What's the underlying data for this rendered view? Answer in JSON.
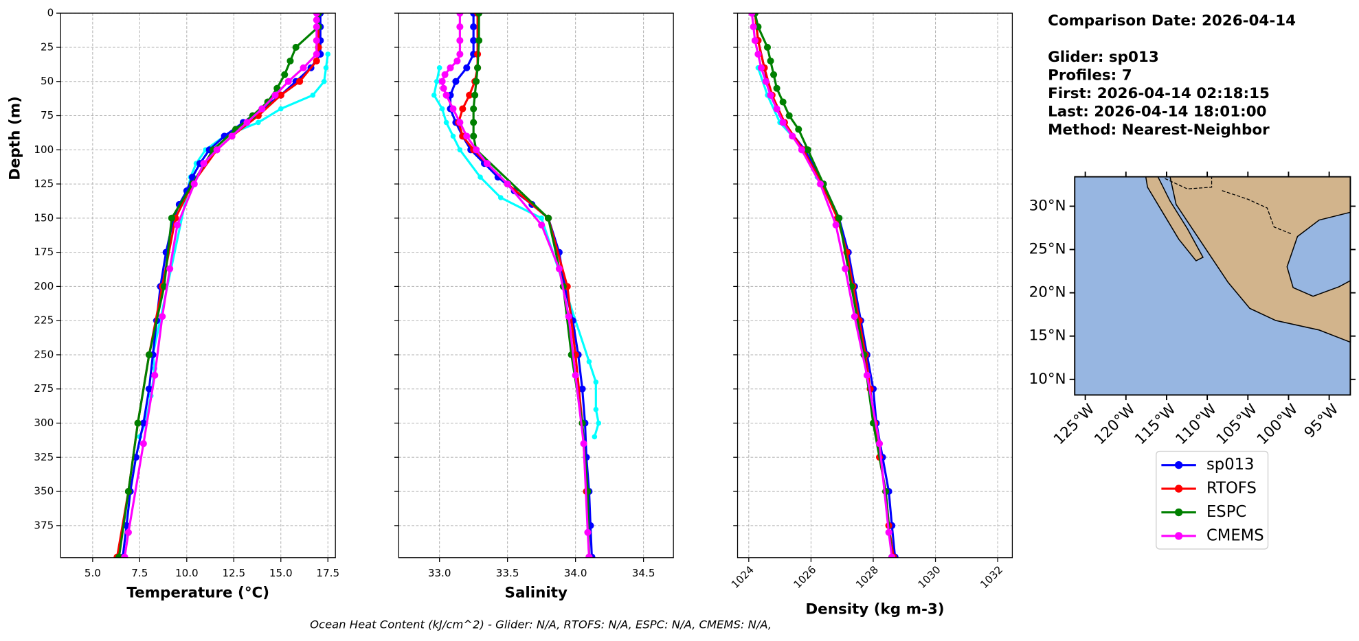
{
  "info": {
    "title": "Comparison Date: 2026-04-14",
    "lines": [
      "Glider: sp013",
      "Profiles: 7",
      "First: 2026-04-14 02:18:15",
      "Last: 2026-04-14 18:01:00",
      "Method: Nearest-Neighbor"
    ]
  },
  "footer": "Ocean Heat Content (kJ/cm^2) - Glider: N/A,  RTOFS: N/A,  ESPC: N/A,  CMEMS: N/A,",
  "chart_data": [
    {
      "type": "line",
      "xlabel": "Temperature (°C)",
      "ylabel": "Depth (m)",
      "grid": true,
      "invert_y": true,
      "xlim": [
        3.3,
        17.9
      ],
      "xticks": [
        {
          "value": 5,
          "label": "5.0"
        },
        7.5,
        {
          "value": 10,
          "label": "10.0"
        },
        12.5,
        {
          "value": 15,
          "label": "15.0"
        },
        17.5
      ],
      "ylim": [
        0,
        398.5
      ],
      "yticks": [
        0,
        25,
        50,
        75,
        100,
        125,
        150,
        175,
        200,
        225,
        250,
        275,
        300,
        325,
        350,
        375
      ],
      "series": [
        {
          "color": "#00ffff",
          "depth": [
            30,
            40,
            50,
            60,
            70,
            80,
            90,
            100,
            110,
            120,
            250,
            260,
            280,
            300,
            310
          ],
          "values": [
            17.5,
            17.4,
            17.3,
            16.7,
            15.0,
            13.8,
            12.0,
            11.0,
            10.5,
            10.2,
            8.2,
            8.3,
            8.1,
            7.8,
            7.5
          ]
        },
        {
          "name": "sp013",
          "color": "#0000ff",
          "depth": [
            0,
            10,
            20,
            30,
            40,
            50,
            60,
            70,
            80,
            90,
            100,
            110,
            120,
            130,
            140,
            150,
            175,
            200,
            225,
            250,
            275,
            300,
            325,
            350,
            375,
            398
          ],
          "values": [
            17.1,
            17.1,
            17.1,
            17.1,
            16.6,
            15.8,
            15.0,
            14.0,
            13.0,
            12.0,
            11.2,
            10.7,
            10.3,
            10.0,
            9.6,
            9.3,
            8.9,
            8.6,
            8.4,
            8.2,
            8.0,
            7.7,
            7.3,
            7.0,
            6.8,
            6.6
          ]
        },
        {
          "name": "RTOFS",
          "color": "#ff0000",
          "depth": [
            0,
            25,
            35,
            50,
            60,
            75,
            90,
            100,
            125,
            150,
            200,
            250,
            300,
            350,
            398
          ],
          "values": [
            17.0,
            17.0,
            16.9,
            16.0,
            15.0,
            13.8,
            12.4,
            11.6,
            10.3,
            9.4,
            8.7,
            8.0,
            7.4,
            6.9,
            6.3
          ]
        },
        {
          "name": "ESPC",
          "color": "#008000",
          "depth": [
            0,
            10,
            25,
            35,
            45,
            55,
            65,
            75,
            85,
            100,
            125,
            150,
            200,
            250,
            300,
            350,
            398
          ],
          "values": [
            17.0,
            17.0,
            15.8,
            15.5,
            15.2,
            14.8,
            14.3,
            13.5,
            12.6,
            11.4,
            10.3,
            9.2,
            8.8,
            8.0,
            7.4,
            6.9,
            6.4
          ]
        },
        {
          "name": "CMEMS",
          "color": "#ff00ff",
          "depth": [
            0,
            5,
            10,
            20,
            30,
            40,
            50,
            60,
            70,
            80,
            90,
            100,
            110,
            125,
            155,
            187,
            222,
            265,
            315,
            380,
            398
          ],
          "values": [
            16.9,
            16.9,
            16.9,
            16.9,
            16.9,
            16.2,
            15.4,
            14.7,
            14.0,
            13.2,
            12.4,
            11.6,
            10.9,
            10.4,
            9.5,
            9.1,
            8.7,
            8.3,
            7.7,
            6.9,
            6.7
          ]
        }
      ]
    },
    {
      "type": "line",
      "xlabel": "Salinity",
      "grid": true,
      "invert_y": true,
      "xlim": [
        32.7,
        34.72
      ],
      "xticks": [
        {
          "value": 33,
          "label": "33.0"
        },
        33.5,
        {
          "value": 34,
          "label": "34.0"
        },
        34.5
      ],
      "series": [
        {
          "color": "#00ffff",
          "depth": [
            40,
            50,
            60,
            70,
            80,
            90,
            100,
            120,
            135,
            150,
            255,
            270,
            290,
            300,
            310
          ],
          "values": [
            33.0,
            32.98,
            32.96,
            33.02,
            33.05,
            33.1,
            33.15,
            33.3,
            33.45,
            33.75,
            34.1,
            34.15,
            34.15,
            34.17,
            34.14
          ]
        },
        {
          "color": "#0000ff",
          "depth": [
            0,
            10,
            20,
            30,
            40,
            50,
            60,
            70,
            80,
            90,
            100,
            110,
            120,
            130,
            140,
            150,
            175,
            200,
            225,
            250,
            275,
            300,
            325,
            350,
            375,
            398
          ],
          "values": [
            33.25,
            33.25,
            33.25,
            33.25,
            33.2,
            33.12,
            33.08,
            33.08,
            33.12,
            33.17,
            33.23,
            33.33,
            33.43,
            33.55,
            33.68,
            33.8,
            33.88,
            33.92,
            33.98,
            34.02,
            34.05,
            34.07,
            34.08,
            34.1,
            34.11,
            34.12
          ]
        },
        {
          "color": "#ff0000",
          "depth": [
            0,
            30,
            40,
            50,
            60,
            70,
            80,
            90,
            100,
            125,
            150,
            200,
            250,
            300,
            350,
            398
          ],
          "values": [
            33.28,
            33.28,
            33.28,
            33.26,
            33.22,
            33.17,
            33.14,
            33.17,
            33.25,
            33.5,
            33.8,
            33.94,
            34.0,
            34.05,
            34.08,
            34.1
          ]
        },
        {
          "color": "#008000",
          "depth": [
            0,
            20,
            40,
            50,
            60,
            70,
            80,
            90,
            100,
            150,
            200,
            250,
            300,
            350,
            398
          ],
          "values": [
            33.29,
            33.29,
            33.28,
            33.27,
            33.26,
            33.25,
            33.25,
            33.25,
            33.27,
            33.8,
            33.91,
            33.97,
            34.05,
            34.09,
            34.1
          ]
        },
        {
          "color": "#ff00ff",
          "depth": [
            0,
            10,
            20,
            30,
            35,
            40,
            45,
            50,
            55,
            60,
            70,
            80,
            90,
            100,
            110,
            125,
            155,
            187,
            222,
            265,
            315,
            380,
            398
          ],
          "values": [
            33.15,
            33.15,
            33.15,
            33.15,
            33.13,
            33.08,
            33.04,
            33.02,
            33.03,
            33.05,
            33.1,
            33.15,
            33.2,
            33.27,
            33.35,
            33.5,
            33.75,
            33.88,
            33.95,
            34.0,
            34.06,
            34.09,
            34.1
          ]
        }
      ]
    },
    {
      "type": "line",
      "xlabel": "Density (kg m-3)",
      "grid": true,
      "invert_y": true,
      "xtick_rotation": 45,
      "xlim": [
        1023.64,
        1032.47
      ],
      "xticks": [
        1024,
        1026,
        1028,
        1030,
        1032
      ],
      "series": [
        {
          "color": "#00ffff",
          "depth": [
            40,
            60,
            80,
            100,
            120
          ],
          "values": [
            1024.3,
            1024.6,
            1025.0,
            1025.8,
            1026.2
          ]
        },
        {
          "color": "#0000ff",
          "depth": [
            0,
            20,
            40,
            60,
            80,
            100,
            125,
            150,
            175,
            200,
            225,
            250,
            275,
            300,
            325,
            350,
            375,
            398
          ],
          "values": [
            1024.2,
            1024.3,
            1024.5,
            1024.7,
            1025.1,
            1025.8,
            1026.4,
            1026.9,
            1027.2,
            1027.4,
            1027.6,
            1027.8,
            1028.0,
            1028.1,
            1028.3,
            1028.5,
            1028.6,
            1028.7
          ]
        },
        {
          "color": "#ff0000",
          "depth": [
            0,
            20,
            40,
            60,
            80,
            100,
            125,
            150,
            175,
            200,
            225,
            250,
            275,
            300,
            325,
            350,
            375,
            398
          ],
          "values": [
            1024.2,
            1024.3,
            1024.5,
            1024.75,
            1025.15,
            1025.75,
            1026.35,
            1026.85,
            1027.15,
            1027.35,
            1027.55,
            1027.75,
            1027.9,
            1028.05,
            1028.2,
            1028.4,
            1028.5,
            1028.65
          ]
        },
        {
          "color": "#008000",
          "depth": [
            0,
            10,
            25,
            35,
            45,
            55,
            65,
            75,
            85,
            100,
            125,
            150,
            200,
            250,
            300,
            350,
            398
          ],
          "values": [
            1024.2,
            1024.3,
            1024.6,
            1024.7,
            1024.8,
            1024.9,
            1025.1,
            1025.3,
            1025.6,
            1025.9,
            1026.4,
            1026.9,
            1027.3,
            1027.7,
            1028.0,
            1028.4,
            1028.6
          ]
        },
        {
          "color": "#ff00ff",
          "depth": [
            0,
            10,
            20,
            30,
            40,
            50,
            60,
            70,
            80,
            90,
            100,
            125,
            155,
            187,
            222,
            265,
            315,
            380,
            398
          ],
          "values": [
            1024.1,
            1024.15,
            1024.2,
            1024.3,
            1024.4,
            1024.55,
            1024.7,
            1024.9,
            1025.1,
            1025.4,
            1025.7,
            1026.3,
            1026.8,
            1027.1,
            1027.4,
            1027.8,
            1028.2,
            1028.5,
            1028.6
          ]
        }
      ]
    },
    {
      "type": "map",
      "ocean_color": "#97b6e1",
      "land_color": "#d2b48c",
      "xlim": [
        -126.3,
        -92.4
      ],
      "ylim": [
        8.2,
        33.4
      ],
      "xticks": [
        {
          "value": -125,
          "label": "125°W"
        },
        {
          "value": -120,
          "label": "120°W"
        },
        {
          "value": -115,
          "label": "115°W"
        },
        {
          "value": -110,
          "label": "110°W"
        },
        {
          "value": -105,
          "label": "105°W"
        },
        {
          "value": -100,
          "label": "100°W"
        },
        {
          "value": -95,
          "label": "95°W"
        }
      ],
      "yticks": [
        {
          "value": 10,
          "label": "10°N"
        },
        {
          "value": 15,
          "label": "15°N"
        },
        {
          "value": 20,
          "label": "20°N"
        },
        {
          "value": 25,
          "label": "25°N"
        },
        {
          "value": 30,
          "label": "30°N"
        }
      ]
    }
  ]
}
